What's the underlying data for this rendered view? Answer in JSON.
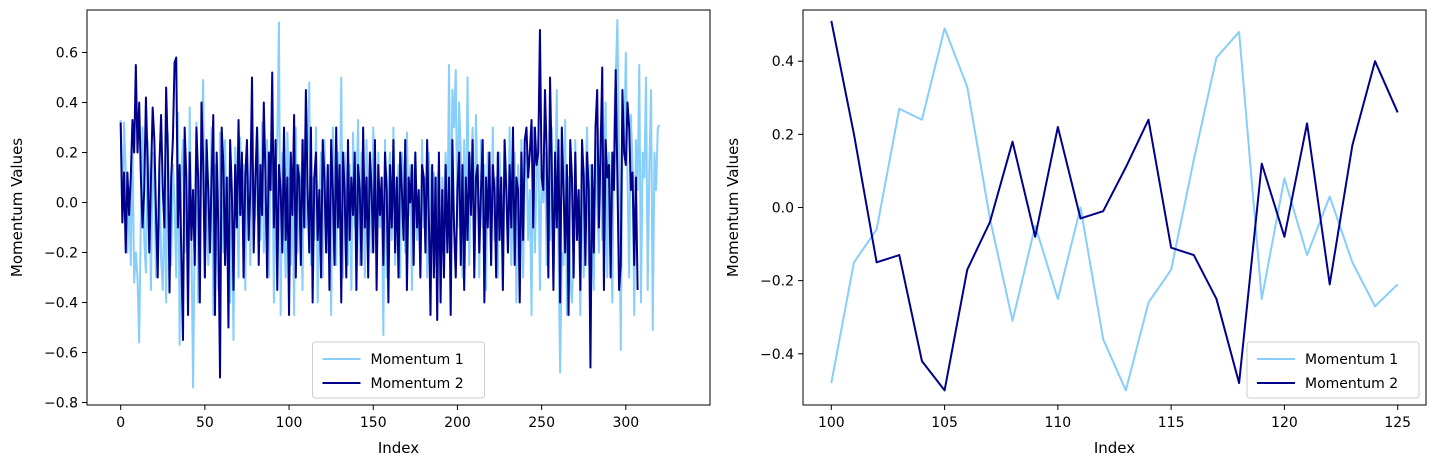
{
  "colors": {
    "series1": "#87cefa",
    "series2": "#00008b",
    "axes": "#000000",
    "legend_edge": "#cccccc"
  },
  "chart_data": [
    {
      "type": "line",
      "xlabel": "Index",
      "ylabel": "Momentum Values",
      "xlim": [
        -20,
        350
      ],
      "ylim": [
        -0.81,
        0.77
      ],
      "xticks": [
        0,
        50,
        100,
        150,
        200,
        250,
        300
      ],
      "xtick_labels": [
        "0",
        "50",
        "100",
        "150",
        "200",
        "250",
        "300"
      ],
      "yticks": [
        -0.8,
        -0.6,
        -0.4,
        -0.2,
        0.0,
        0.2,
        0.4,
        0.6
      ],
      "ytick_labels": [
        "−0.8",
        "−0.6",
        "−0.4",
        "−0.2",
        "0.0",
        "0.2",
        "0.4",
        "0.6"
      ],
      "legend_position": "lower center",
      "grid": false,
      "series": [
        {
          "name": "Momentum 1",
          "x_start": 0,
          "values": [
            0.33,
            -0.08,
            0.32,
            0.12,
            -0.2,
            0.06,
            -0.25,
            0.26,
            -0.32,
            -0.2,
            -0.3,
            -0.56,
            -0.05,
            0.3,
            -0.15,
            -0.28,
            0.25,
            0.1,
            -0.35,
            0.2,
            0.05,
            -0.3,
            -0.18,
            0.14,
            -0.22,
            -0.35,
            0.05,
            -0.4,
            0.28,
            -0.1,
            -0.25,
            0.15,
            0.0,
            -0.3,
            0.36,
            -0.57,
            0.1,
            0.25,
            -0.2,
            0.05,
            -0.35,
            0.38,
            -0.15,
            -0.74,
            -0.1,
            0.32,
            -0.4,
            0.05,
            0.2,
            0.49,
            -0.3,
            0.1,
            -0.25,
            -0.1,
            0.3,
            -0.45,
            0.15,
            -0.05,
            -0.35,
            0.28,
            0.05,
            -0.2,
            0.25,
            -0.15,
            0.1,
            -0.4,
            0.0,
            -0.55,
            0.22,
            0.1,
            -0.3,
            0.26,
            -0.05,
            0.15,
            -0.35,
            0.2,
            0.05,
            -0.25,
            0.28,
            -0.1,
            -0.05,
            0.3,
            0.18,
            -0.15,
            0.32,
            -0.2,
            0.12,
            0.25,
            -0.3,
            0.2,
            0.3,
            -0.4,
            0.1,
            0.25,
            0.72,
            -0.45,
            0.2,
            -0.05,
            -0.3,
            0.28,
            0.05,
            -0.25,
            0.1,
            -0.45,
            0.3,
            -0.2,
            0.15,
            0.05,
            -0.35,
            0.25,
            -0.1,
            0.2,
            0.48,
            -0.25,
            0.1,
            -0.15,
            0.3,
            -0.4,
            0.05,
            0.2,
            -0.3,
            0.25,
            0.0,
            -0.2,
            0.15,
            -0.45,
            0.3,
            0.1,
            -0.25,
            0.2,
            -0.1,
            0.5,
            -0.3,
            0.2,
            0.05,
            -0.25,
            0.15,
            -0.35,
            0.28,
            -0.1,
            0.05,
            0.33,
            -0.25,
            0.2,
            0.1,
            -0.3,
            0.25,
            -0.05,
            0.15,
            -0.2,
            0.3,
            0.1,
            -0.25,
            0.2,
            -0.1,
            0.05,
            -0.53,
            0.25,
            -0.3,
            0.1,
            0.2,
            -0.15,
            0.3,
            -0.25,
            0.05,
            0.15,
            -0.3,
            0.2,
            0.1,
            -0.2,
            0.28,
            -0.05,
            0.15,
            -0.35,
            0.1,
            0.2,
            -0.15,
            0.05,
            -0.25,
            0.25,
            -0.1,
            0.1,
            -0.3,
            0.2,
            0.05,
            -0.15,
            0.12,
            -0.25,
            0.08,
            0.15,
            -0.3,
            0.1,
            -0.05,
            0.2,
            -0.15,
            0.55,
            -0.2,
            0.45,
            0.3,
            0.53,
            -0.1,
            0.4,
            0.2,
            -0.3,
            0.25,
            -0.15,
            0.5,
            -0.25,
            0.1,
            0.3,
            -0.2,
            0.35,
            0.05,
            -0.3,
            0.25,
            -0.1,
            0.15,
            -0.35,
            0.2,
            0.05,
            -0.25,
            0.3,
            -0.15,
            0.1,
            -0.3,
            0.2,
            0.0,
            -0.35,
            0.25,
            0.1,
            -0.2,
            0.3,
            -0.25,
            0.05,
            0.2,
            -0.4,
            0.15,
            -0.1,
            0.25,
            -0.3,
            0.1,
            0.2,
            -0.15,
            0.05,
            -0.45,
            0.3,
            -0.2,
            0.1,
            0.25,
            -0.35,
            0.15,
            0.0,
            0.2,
            -0.25,
            0.1,
            -0.15,
            0.3,
            -0.3,
            0.05,
            0.45,
            -0.2,
            -0.68,
            -0.2,
            -0.25,
            0.33,
            -0.45,
            0.1,
            -0.3,
            -0.4,
            -0.2,
            0.25,
            -0.15,
            0.05,
            -0.45,
            0.2,
            -0.3,
            0.1,
            0.3,
            -0.25,
            0.15,
            -0.1,
            -0.35,
            0.25,
            0.0,
            -0.2,
            0.3,
            -0.15,
            0.1,
            0.4,
            -0.3,
            0.2,
            0.05,
            -0.4,
            0.3,
            0.5,
            0.73,
            0.2,
            -0.59,
            0.3,
            0.2,
            0.6,
            0.1,
            -0.3,
            0.35,
            0.15,
            -0.45,
            0.25,
            0.05,
            0.55,
            -0.4,
            0.2,
            0.1,
            0.5,
            -0.35,
            0.15,
            0.45,
            -0.51,
            0.2,
            0.05,
            0.3,
            0.31
          ]
        },
        {
          "name": "Momentum 2",
          "x_start": 0,
          "values": [
            0.32,
            -0.08,
            0.12,
            -0.2,
            0.12,
            -0.05,
            0.1,
            0.33,
            0.2,
            0.55,
            0.2,
            0.4,
            0.1,
            -0.1,
            0.05,
            0.42,
            0.15,
            -0.2,
            0.1,
            0.38,
            0.25,
            -0.05,
            -0.3,
            0.15,
            0.35,
            0.05,
            -0.1,
            0.46,
            0.2,
            -0.36,
            0.1,
            0.25,
            0.56,
            0.58,
            -0.1,
            0.15,
            -0.2,
            -0.55,
            0.3,
            0.1,
            -0.45,
            0.2,
            -0.15,
            0.05,
            -0.25,
            0.3,
            0.1,
            -0.4,
            0.4,
            0.15,
            -0.3,
            0.25,
            0.05,
            -0.2,
            0.1,
            0.35,
            -0.45,
            0.2,
            -0.1,
            -0.7,
            0.3,
            0.15,
            -0.25,
            0.1,
            -0.5,
            0.25,
            0.05,
            -0.35,
            0.15,
            -0.1,
            0.33,
            -0.05,
            0.2,
            -0.3,
            0.1,
            0.25,
            -0.15,
            0.05,
            0.5,
            -0.2,
            0.1,
            0.3,
            -0.25,
            0.15,
            -0.05,
            0.4,
            0.1,
            -0.3,
            0.2,
            0.05,
            0.52,
            -0.1,
            0.25,
            -0.35,
            0.15,
            0.05,
            -0.2,
            0.3,
            -0.15,
            0.1,
            -0.45,
            0.2,
            -0.05,
            0.35,
            -0.3,
            0.15,
            0.1,
            -0.25,
            0.25,
            -0.1,
            0.45,
            0.05,
            -0.2,
            0.3,
            -0.4,
            0.1,
            0.2,
            -0.15,
            0.05,
            -0.3,
            0.25,
            0.1,
            -0.2,
            0.15,
            -0.35,
            0.25,
            0.05,
            -0.25,
            0.3,
            -0.1,
            0.15,
            -0.4,
            0.2,
            0.05,
            -0.3,
            0.25,
            -0.15,
            0.1,
            -0.05,
            0.2,
            -0.35,
            0.15,
            0.05,
            -0.25,
            0.3,
            -0.1,
            0.1,
            -0.3,
            0.2,
            0.05,
            -0.2,
            0.25,
            -0.35,
            0.15,
            -0.05,
            0.1,
            -0.25,
            0.2,
            0.05,
            -0.4,
            0.15,
            -0.1,
            0.25,
            -0.2,
            0.1,
            -0.3,
            0.2,
            0.05,
            -0.15,
            0.25,
            -0.35,
            0.1,
            0.0,
            0.15,
            -0.25,
            0.2,
            -0.1,
            0.05,
            -0.3,
            0.15,
            0.1,
            -0.2,
            0.25,
            -0.05,
            -0.45,
            0.15,
            -0.3,
            0.1,
            -0.47,
            0.2,
            -0.4,
            0.05,
            -0.3,
            0.15,
            -0.2,
            0.1,
            -0.45,
            0.25,
            -0.1,
            -0.3,
            0.05,
            0.2,
            -0.25,
            0.15,
            -0.35,
            0.1,
            -0.15,
            0.2,
            -0.05,
            0.25,
            -0.3,
            0.1,
            0.15,
            -0.2,
            0.05,
            0.25,
            -0.4,
            0.1,
            -0.1,
            0.2,
            -0.25,
            0.15,
            0.05,
            -0.3,
            0.2,
            -0.15,
            0.1,
            -0.35,
            0.25,
            0.05,
            -0.2,
            0.15,
            -0.1,
            0.3,
            -0.25,
            0.1,
            0.05,
            -0.4,
            0.2,
            -0.15,
            0.25,
            0.3,
            0.1,
            0.2,
            0.33,
            -0.1,
            0.3,
            0.15,
            0.2,
            0.69,
            0.1,
            0.05,
            0.45,
            0.2,
            -0.3,
            0.5,
            0.15,
            -0.35,
            0.2,
            -0.1,
            0.25,
            -0.4,
            0.3,
            0.05,
            -0.2,
            0.15,
            -0.45,
            0.25,
            0.1,
            -0.3,
            0.2,
            -0.15,
            0.05,
            -0.35,
            0.25,
            0.1,
            -0.25,
            0.2,
            0.05,
            -0.66,
            0.15,
            -0.2,
            0.3,
            0.45,
            -0.1,
            0.2,
            0.54,
            -0.35,
            0.25,
            0.1,
            0.15,
            -0.3,
            0.2,
            0.05,
            0.53,
            0.1,
            -0.35,
            -0.25,
            0.45,
            0.2,
            0.15,
            0.4,
            0.3,
            0.05,
            0.12,
            -0.25,
            0.1,
            -0.35
          ]
        }
      ]
    },
    {
      "type": "line",
      "xlabel": "Index",
      "ylabel": "Momentum Values",
      "xlim": [
        98.75,
        126.25
      ],
      "ylim": [
        -0.54,
        0.54
      ],
      "xticks": [
        100,
        105,
        110,
        115,
        120,
        125
      ],
      "xtick_labels": [
        "100",
        "105",
        "110",
        "115",
        "120",
        "125"
      ],
      "yticks": [
        -0.4,
        -0.2,
        0.0,
        0.2,
        0.4
      ],
      "ytick_labels": [
        "−0.4",
        "−0.2",
        "0.0",
        "0.2",
        "0.4"
      ],
      "legend_position": "lower right",
      "grid": false,
      "series": [
        {
          "name": "Momentum 1",
          "x_start": 100,
          "values": [
            -0.48,
            -0.15,
            -0.06,
            0.27,
            0.24,
            0.49,
            0.33,
            -0.03,
            -0.31,
            -0.05,
            -0.25,
            0.0,
            -0.36,
            -0.5,
            -0.26,
            -0.17,
            0.13,
            0.41,
            0.48,
            -0.25,
            0.08,
            -0.13,
            0.03,
            -0.15,
            -0.27,
            -0.21
          ]
        },
        {
          "name": "Momentum 2",
          "x_start": 100,
          "values": [
            0.51,
            0.2,
            -0.15,
            -0.13,
            -0.42,
            -0.5,
            -0.17,
            -0.04,
            0.18,
            -0.08,
            0.22,
            -0.03,
            -0.01,
            0.11,
            0.24,
            -0.11,
            -0.13,
            -0.25,
            -0.48,
            0.12,
            -0.08,
            0.23,
            -0.21,
            0.17,
            0.4,
            0.26
          ]
        }
      ]
    }
  ]
}
